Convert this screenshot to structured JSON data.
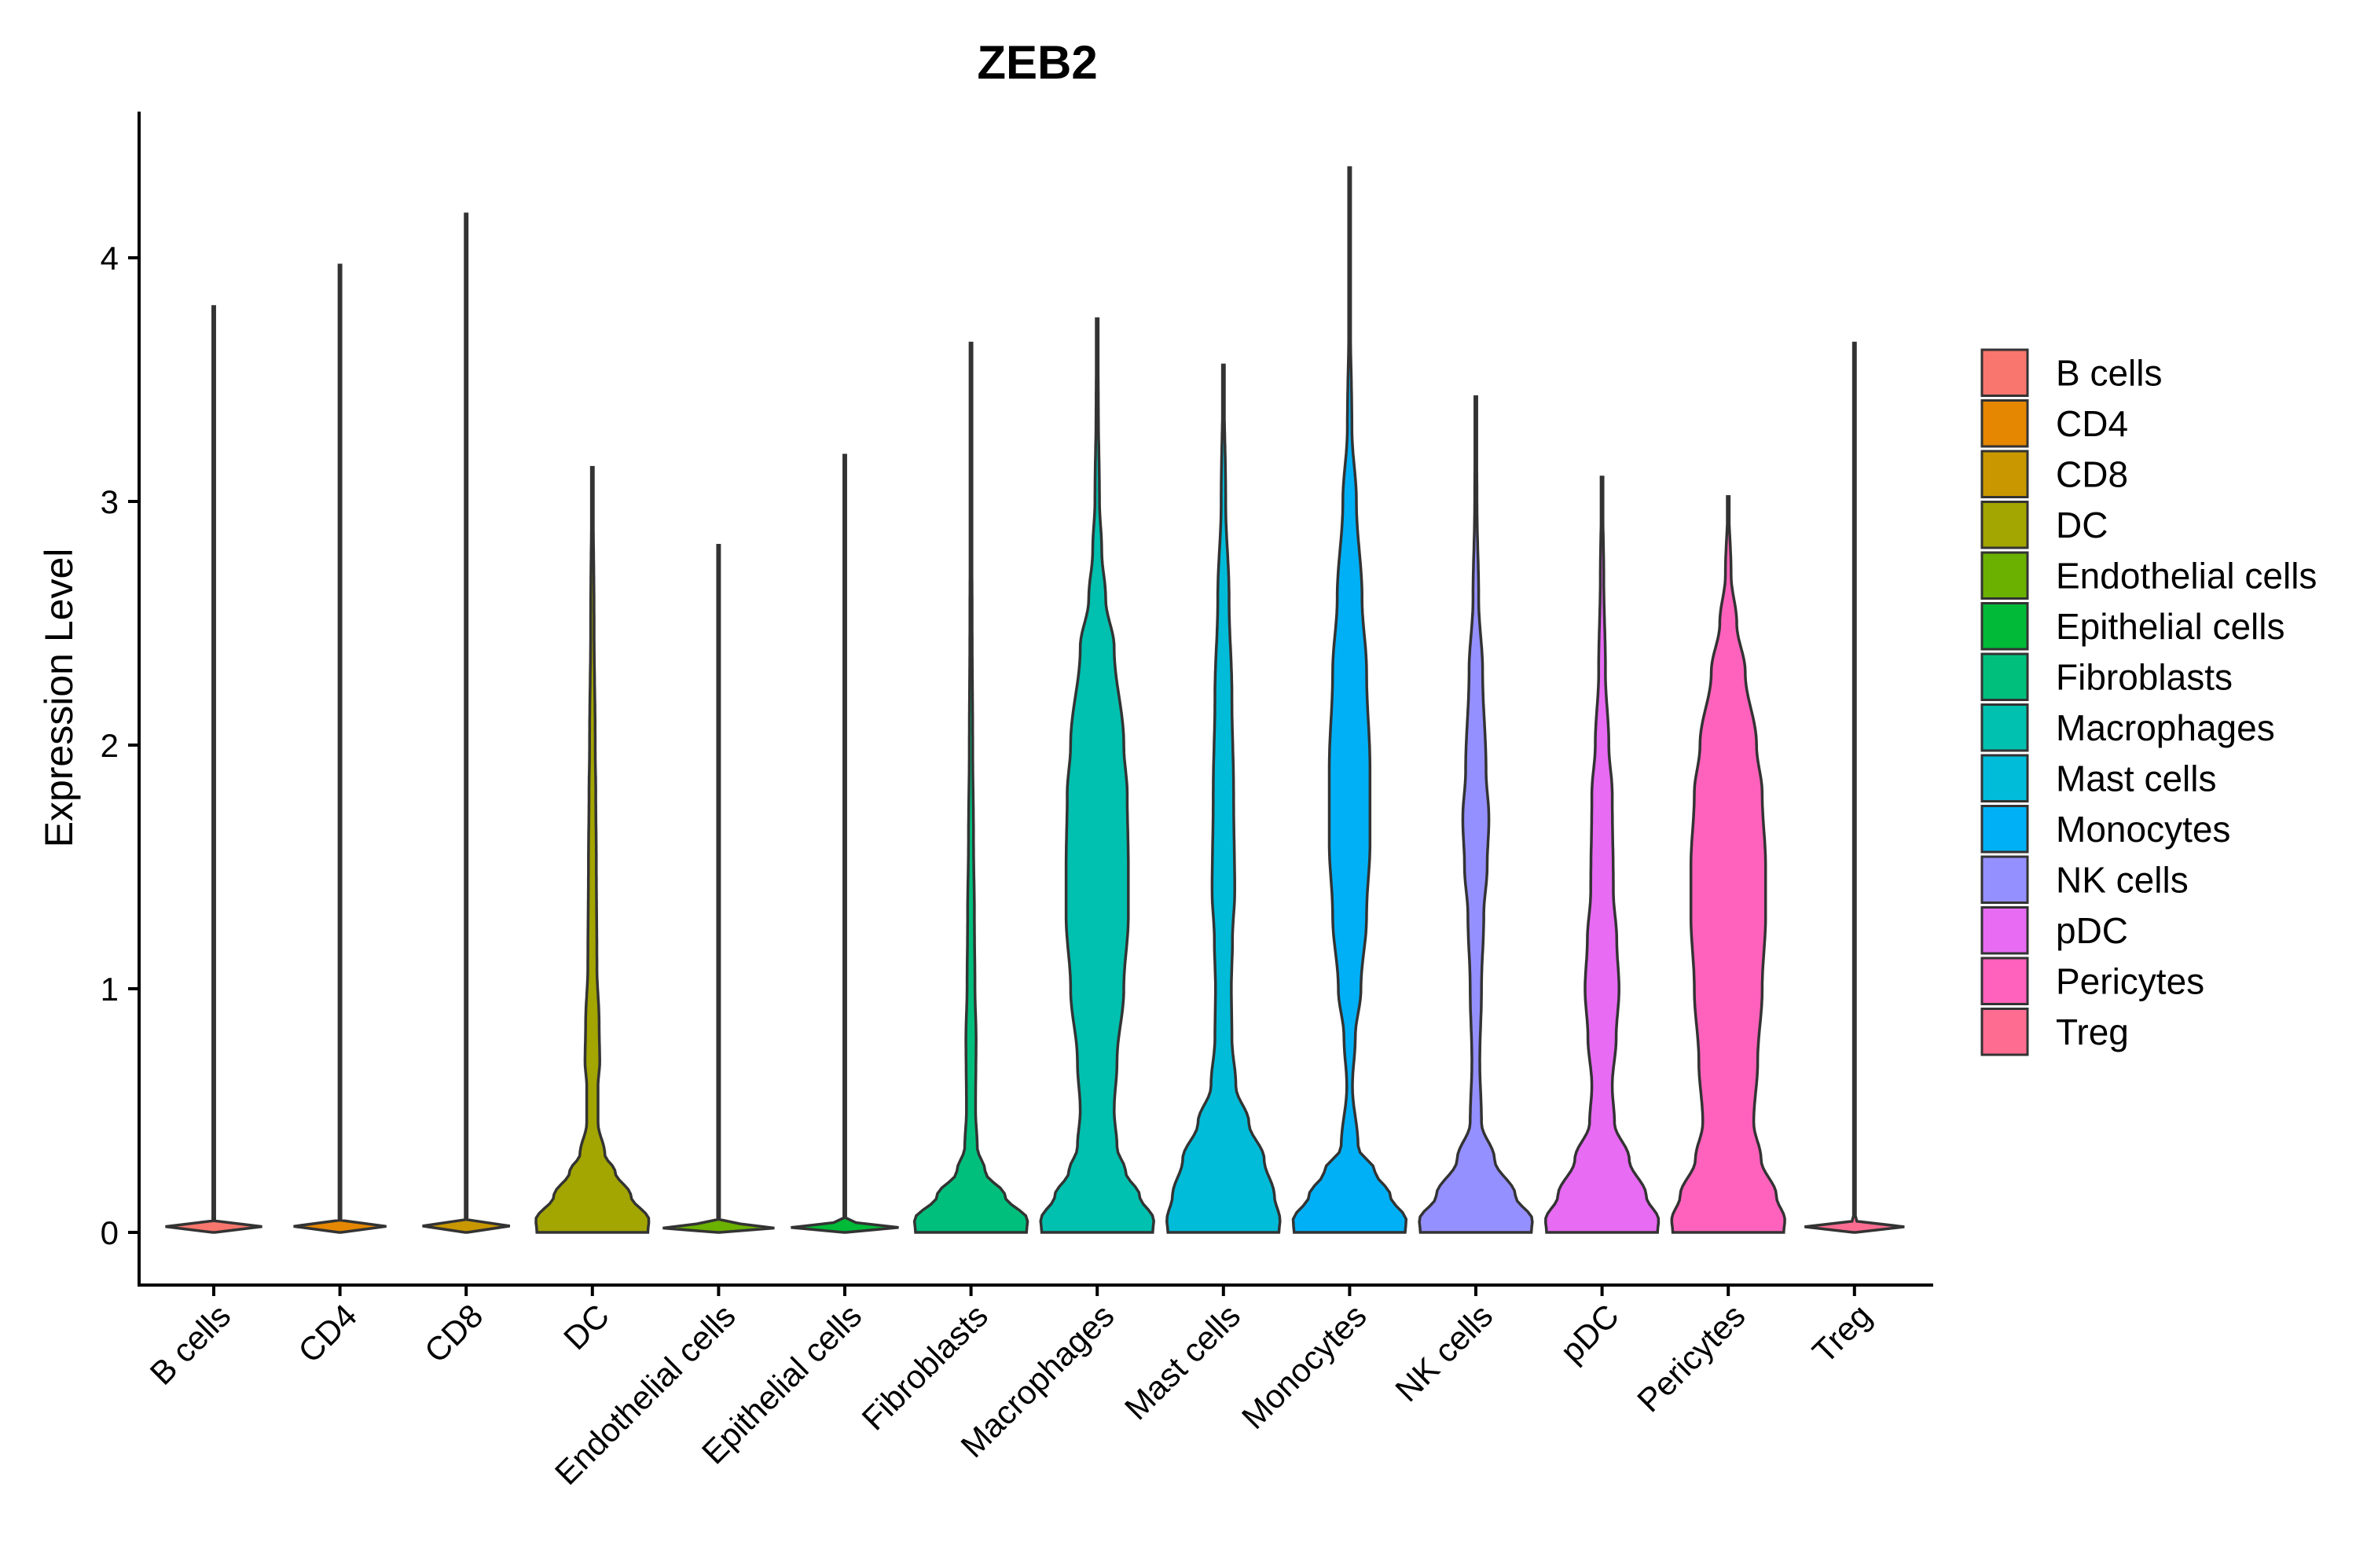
{
  "chart_data": {
    "type": "violin",
    "title": "ZEB2",
    "xlabel": "",
    "ylabel": "Expression Level",
    "ylim": [
      -0.22,
      4.6
    ],
    "yticks": [
      0,
      1,
      2,
      3,
      4
    ],
    "categories": [
      "B cells",
      "CD4",
      "CD8",
      "DC",
      "Endothelial cells",
      "Epithelial cells",
      "Fibroblasts",
      "Macrophages",
      "Mast cells",
      "Monocytes",
      "NK cells",
      "pDC",
      "Pericytes",
      "Treg"
    ],
    "legend_position": "right",
    "series": [
      {
        "name": "B cells",
        "color": "#F8766D",
        "max": 3.8,
        "profile": [
          [
            0,
            0.02
          ],
          [
            0.015,
            1
          ],
          [
            0.05,
            0.005
          ],
          [
            3.8,
            0.004
          ]
        ]
      },
      {
        "name": "CD4",
        "color": "#E58700",
        "max": 3.97,
        "profile": [
          [
            0,
            0.02
          ],
          [
            0.015,
            1
          ],
          [
            0.05,
            0.005
          ],
          [
            3.97,
            0.004
          ]
        ]
      },
      {
        "name": "CD8",
        "color": "#C99800",
        "max": 4.18,
        "profile": [
          [
            0,
            0.02
          ],
          [
            0.015,
            1
          ],
          [
            0.05,
            0.005
          ],
          [
            4.18,
            0.004
          ]
        ]
      },
      {
        "name": "DC",
        "color": "#A3A500",
        "max": 3.14,
        "profile": [
          [
            0,
            0.98
          ],
          [
            0.05,
            1
          ],
          [
            0.15,
            0.68
          ],
          [
            0.25,
            0.4
          ],
          [
            0.32,
            0.22
          ],
          [
            0.45,
            0.1
          ],
          [
            0.6,
            0.1
          ],
          [
            0.7,
            0.13
          ],
          [
            0.85,
            0.12
          ],
          [
            1.1,
            0.08
          ],
          [
            1.5,
            0.07
          ],
          [
            1.8,
            0.06
          ],
          [
            2.0,
            0.05
          ],
          [
            2.5,
            0.03
          ],
          [
            3.14,
            0.01
          ]
        ]
      },
      {
        "name": "Endothelial cells",
        "color": "#6BB100",
        "max": 2.82,
        "profile": [
          [
            0,
            0.02
          ],
          [
            0.015,
            1
          ],
          [
            0.05,
            0.005
          ],
          [
            2.82,
            0.004
          ]
        ]
      },
      {
        "name": "Epithelial cells",
        "color": "#00BA38",
        "max": 3.19,
        "profile": [
          [
            0,
            0.02
          ],
          [
            0.015,
            1
          ],
          [
            0.05,
            0.005
          ],
          [
            3.19,
            0.004
          ]
        ]
      },
      {
        "name": "Fibroblasts",
        "color": "#00BF7D",
        "max": 3.65,
        "profile": [
          [
            0,
            0.98
          ],
          [
            0.05,
            1
          ],
          [
            0.15,
            0.6
          ],
          [
            0.25,
            0.25
          ],
          [
            0.35,
            0.11
          ],
          [
            0.5,
            0.08
          ],
          [
            0.8,
            0.09
          ],
          [
            1.0,
            0.07
          ],
          [
            1.3,
            0.06
          ],
          [
            1.6,
            0.045
          ],
          [
            2.0,
            0.03
          ],
          [
            2.5,
            0.02
          ],
          [
            3.0,
            0.01
          ],
          [
            3.65,
            0.004
          ]
        ]
      },
      {
        "name": "Macrophages",
        "color": "#00C0AF",
        "max": 3.75,
        "profile": [
          [
            0,
            0.98
          ],
          [
            0.05,
            1
          ],
          [
            0.15,
            0.75
          ],
          [
            0.25,
            0.5
          ],
          [
            0.35,
            0.35
          ],
          [
            0.5,
            0.3
          ],
          [
            0.7,
            0.35
          ],
          [
            1.0,
            0.47
          ],
          [
            1.3,
            0.55
          ],
          [
            1.5,
            0.55
          ],
          [
            1.8,
            0.53
          ],
          [
            2.0,
            0.47
          ],
          [
            2.4,
            0.3
          ],
          [
            2.6,
            0.15
          ],
          [
            2.8,
            0.08
          ],
          [
            3.0,
            0.04
          ],
          [
            3.4,
            0.02
          ],
          [
            3.75,
            0.005
          ]
        ]
      },
      {
        "name": "Mast cells",
        "color": "#00BCD8",
        "max": 3.56,
        "profile": [
          [
            0,
            0.98
          ],
          [
            0.05,
            1
          ],
          [
            0.15,
            0.9
          ],
          [
            0.3,
            0.72
          ],
          [
            0.45,
            0.45
          ],
          [
            0.6,
            0.22
          ],
          [
            0.8,
            0.15
          ],
          [
            1.0,
            0.14
          ],
          [
            1.2,
            0.16
          ],
          [
            1.4,
            0.2
          ],
          [
            1.8,
            0.18
          ],
          [
            2.2,
            0.15
          ],
          [
            2.6,
            0.1
          ],
          [
            3.0,
            0.04
          ],
          [
            3.56,
            0.005
          ]
        ]
      },
      {
        "name": "Monocytes",
        "color": "#00B0F6",
        "max": 4.37,
        "profile": [
          [
            0,
            0.98
          ],
          [
            0.05,
            1
          ],
          [
            0.15,
            0.72
          ],
          [
            0.25,
            0.45
          ],
          [
            0.35,
            0.15
          ],
          [
            0.6,
            0.05
          ],
          [
            0.8,
            0.1
          ],
          [
            1.0,
            0.2
          ],
          [
            1.3,
            0.3
          ],
          [
            1.6,
            0.36
          ],
          [
            1.9,
            0.36
          ],
          [
            2.3,
            0.3
          ],
          [
            2.6,
            0.22
          ],
          [
            3.0,
            0.12
          ],
          [
            3.3,
            0.04
          ],
          [
            3.8,
            0.01
          ],
          [
            4.37,
            0.004
          ]
        ]
      },
      {
        "name": "NK cells",
        "color": "#9590FF",
        "max": 3.43,
        "profile": [
          [
            0,
            0.98
          ],
          [
            0.05,
            1
          ],
          [
            0.15,
            0.7
          ],
          [
            0.3,
            0.33
          ],
          [
            0.45,
            0.1
          ],
          [
            0.7,
            0.07
          ],
          [
            1.0,
            0.1
          ],
          [
            1.3,
            0.14
          ],
          [
            1.5,
            0.2
          ],
          [
            1.7,
            0.23
          ],
          [
            1.9,
            0.18
          ],
          [
            2.3,
            0.12
          ],
          [
            2.6,
            0.05
          ],
          [
            3.0,
            0.02
          ],
          [
            3.43,
            0.004
          ]
        ]
      },
      {
        "name": "pDC",
        "color": "#E76BF3",
        "max": 3.1,
        "profile": [
          [
            0,
            0.98
          ],
          [
            0.05,
            1
          ],
          [
            0.15,
            0.78
          ],
          [
            0.3,
            0.48
          ],
          [
            0.45,
            0.22
          ],
          [
            0.6,
            0.18
          ],
          [
            0.8,
            0.25
          ],
          [
            1.0,
            0.3
          ],
          [
            1.2,
            0.26
          ],
          [
            1.4,
            0.2
          ],
          [
            1.8,
            0.18
          ],
          [
            2.0,
            0.12
          ],
          [
            2.3,
            0.06
          ],
          [
            2.7,
            0.03
          ],
          [
            3.1,
            0.004
          ]
        ]
      },
      {
        "name": "Pericytes",
        "color": "#FF62BC",
        "max": 3.02,
        "profile": [
          [
            0,
            0.98
          ],
          [
            0.05,
            1
          ],
          [
            0.15,
            0.85
          ],
          [
            0.3,
            0.58
          ],
          [
            0.45,
            0.45
          ],
          [
            0.7,
            0.52
          ],
          [
            1.0,
            0.6
          ],
          [
            1.3,
            0.66
          ],
          [
            1.5,
            0.66
          ],
          [
            1.8,
            0.6
          ],
          [
            2.0,
            0.5
          ],
          [
            2.3,
            0.3
          ],
          [
            2.5,
            0.15
          ],
          [
            2.7,
            0.05
          ],
          [
            3.02,
            0.004
          ]
        ]
      },
      {
        "name": "Treg",
        "color": "#FF6C91",
        "max": 3.65,
        "profile": [
          [
            0,
            0.02
          ],
          [
            0.015,
            1
          ],
          [
            0.05,
            0.005
          ],
          [
            3.65,
            0.004
          ]
        ]
      }
    ]
  }
}
